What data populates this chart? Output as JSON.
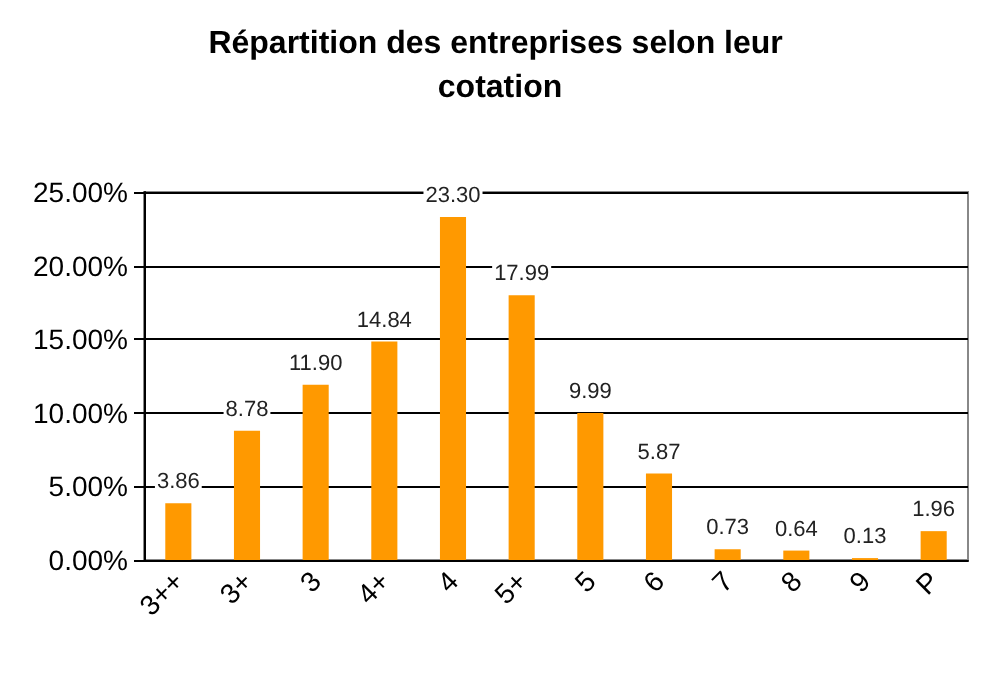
{
  "chart_data": {
    "type": "bar",
    "title": "Répartition des entreprises selon leur cotation",
    "categories": [
      "3++",
      "3+",
      "3",
      "4+",
      "4",
      "5+",
      "5",
      "6",
      "7",
      "8",
      "9",
      "P"
    ],
    "values": [
      3.86,
      8.78,
      11.9,
      14.84,
      23.3,
      17.99,
      9.99,
      5.87,
      0.73,
      0.64,
      0.13,
      1.96
    ],
    "value_labels": [
      "3.86",
      "8.78",
      "11.90",
      "14.84",
      "23.30",
      "17.99",
      "9.99",
      "5.87",
      "0.73",
      "0.64",
      "0.13",
      "1.96"
    ],
    "color": "#ff9900",
    "ylim": [
      0,
      25
    ],
    "yticks": [
      {
        "value": 0,
        "label": "0.00%"
      },
      {
        "value": 5,
        "label": "5.00%"
      },
      {
        "value": 10,
        "label": "10.00%"
      },
      {
        "value": 15,
        "label": "15.00%"
      },
      {
        "value": 20,
        "label": "20.00%"
      },
      {
        "value": 25,
        "label": "25.00%"
      }
    ],
    "grid": "y"
  }
}
